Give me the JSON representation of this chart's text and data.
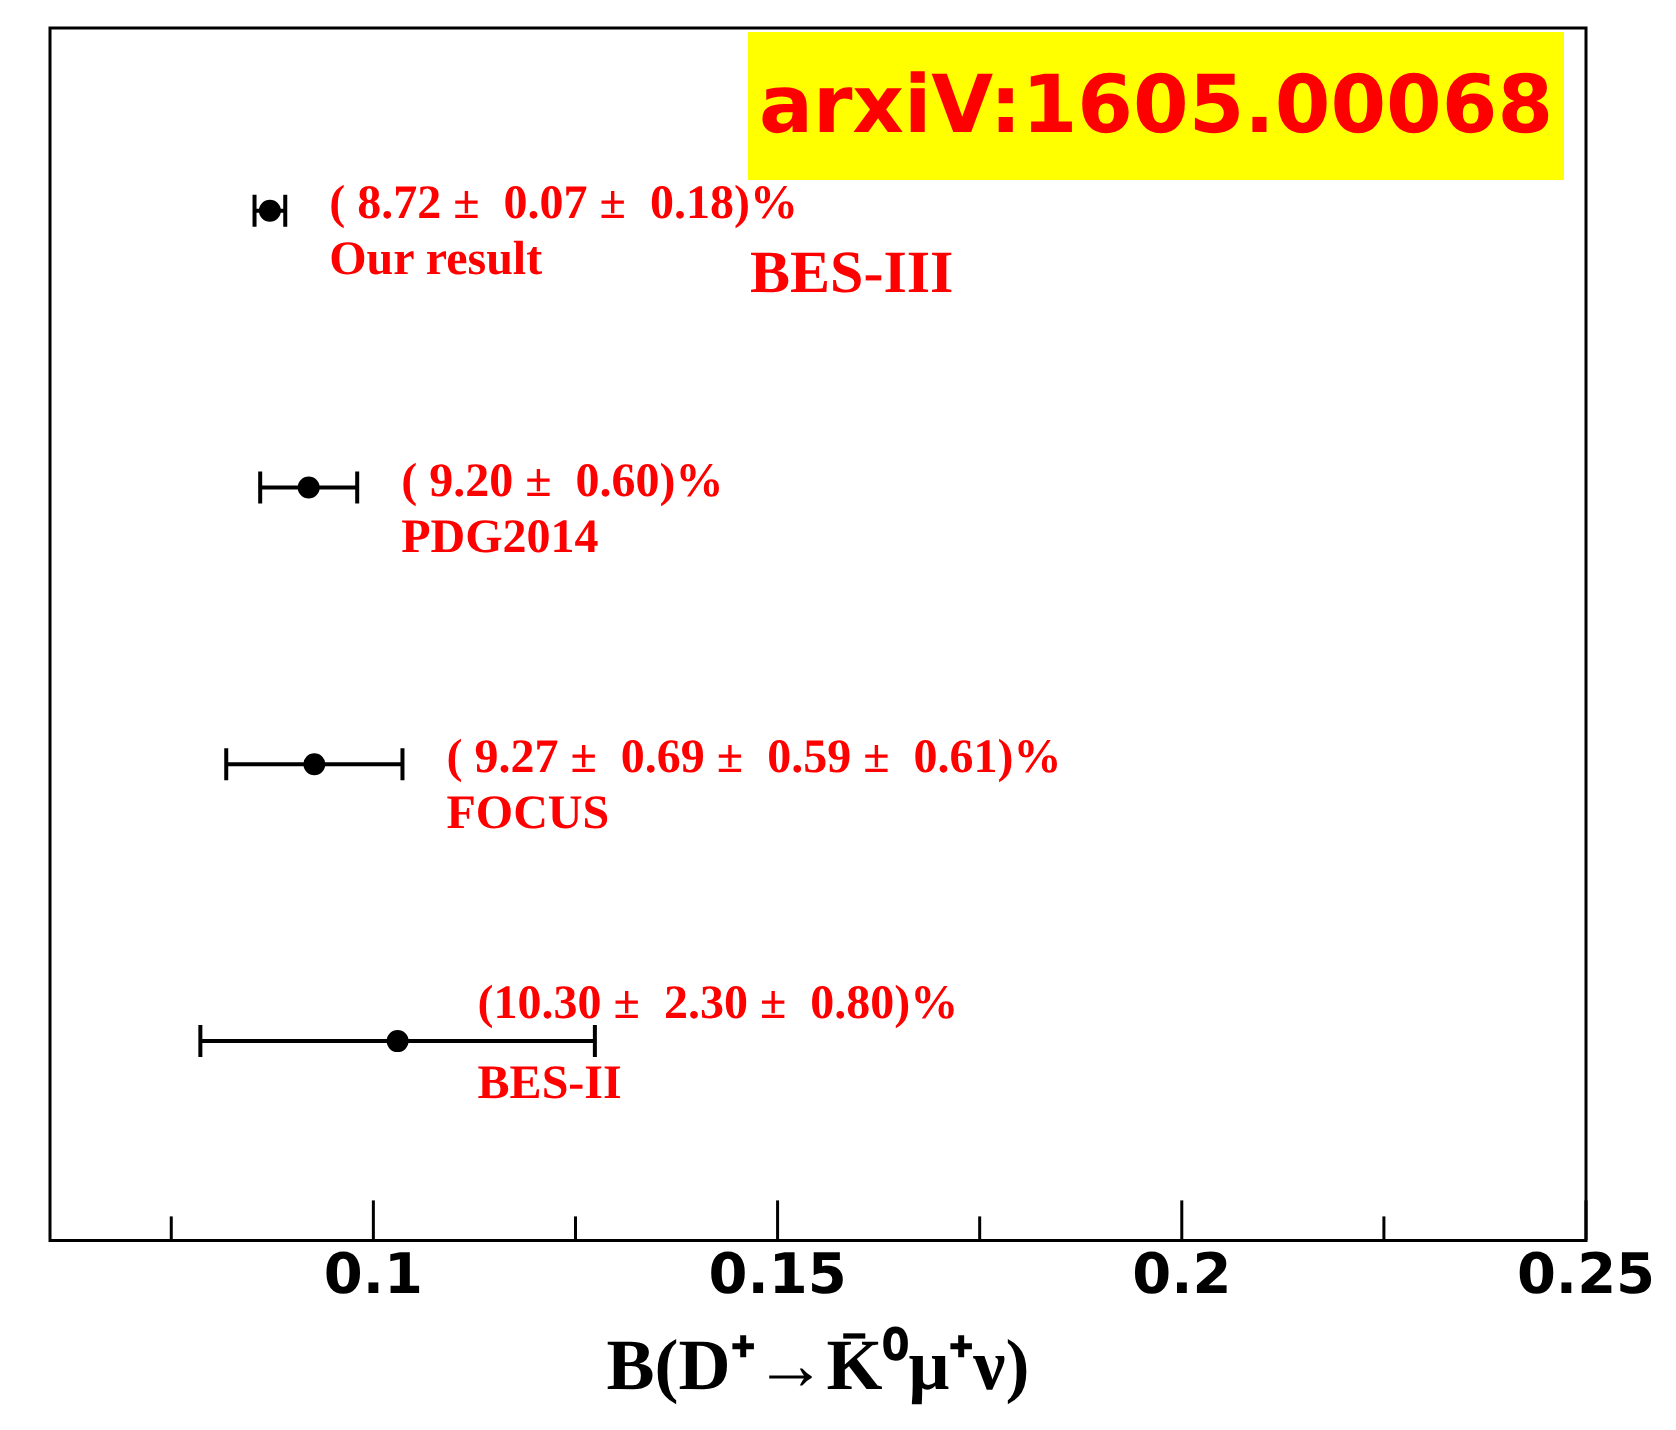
{
  "chart_data": {
    "type": "scatter",
    "orientation": "horizontal",
    "xlabel": "B(D⁺→K̄⁰μ⁺ν)",
    "categories": [
      "Our result",
      "PDG2014",
      "FOCUS",
      "BES-II"
    ],
    "series": [
      {
        "color": "#000000",
        "values": [
          0.0872,
          0.092,
          0.0927,
          0.103
        ],
        "errors": [
          0.0019,
          0.006,
          0.0109,
          0.0244
        ],
        "value_labels": [
          "( 8.72 ±  0.07 ±  0.18)%",
          "( 9.20 ±  0.60)%",
          "( 9.27 ±  0.69 ±  0.59 ±  0.61)%",
          "(10.30 ±  2.30 ±  0.80)%"
        ]
      }
    ],
    "annotations": [
      "arxiV:1605.00068",
      "BES-III"
    ],
    "xlim": [
      0.06,
      0.25
    ],
    "xticks": [
      {
        "value": 0.075,
        "label": null
      },
      0.1,
      {
        "value": 0.125,
        "label": null
      },
      0.15,
      {
        "value": 0.175,
        "label": null
      },
      0.2,
      {
        "value": 0.225,
        "label": null
      },
      0.25
    ],
    "grid": false,
    "legend": false,
    "marker": "circle"
  }
}
